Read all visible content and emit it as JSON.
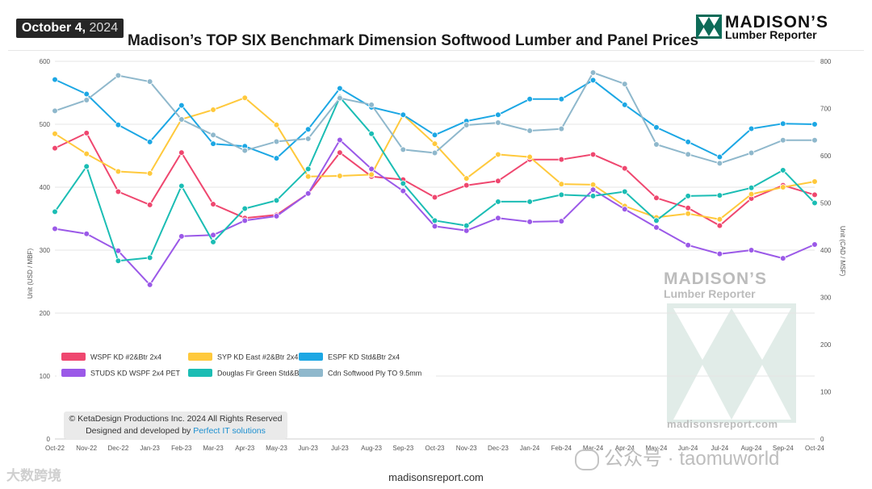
{
  "header": {
    "date_bold": "October 4,",
    "date_year": "2024",
    "title": "Madison’s TOP SIX Benchmark Dimension Softwood Lumber and Panel Prices",
    "logo_main": "MADISON’S",
    "logo_sub": "Lumber Reporter"
  },
  "watermark": {
    "logo_main": "MADISON’S",
    "logo_sub": "Lumber Reporter",
    "url": "madisonsreport.com",
    "left_text": "大数跨境",
    "right_text": "公众号 · taomuworld"
  },
  "copyright": {
    "line1": "© KetaDesign Productions Inc. 2024 All Rights Reserved",
    "line2_prefix": "Designed and developed by",
    "line2_link": "Perfect IT solutions"
  },
  "footer": {
    "url": "madisonsreport.com"
  },
  "colors": {
    "wspf": "#ef476f",
    "syp": "#ffc93c",
    "espf": "#1ca7e4",
    "studs": "#9b59e8",
    "dfir": "#1bbdb4",
    "ply": "#8fb8cc"
  },
  "chart_data": {
    "type": "line",
    "title": "Madison’s TOP SIX Benchmark Dimension Softwood Lumber and Panel Prices",
    "ylabel_left": "Unit (USD / MBF)",
    "ylabel_right": "Unit (CAD / MSF)",
    "ylim_left": [
      0,
      600
    ],
    "ylim_right": [
      0,
      800
    ],
    "yticks_left": [
      0,
      100,
      200,
      300,
      400,
      500,
      600
    ],
    "yticks_right": [
      0,
      100,
      200,
      300,
      400,
      500,
      600,
      700,
      800
    ],
    "grid": true,
    "legend_position": "bottom-left",
    "categories": [
      "Oct-22",
      "Nov-22",
      "Dec-22",
      "Jan-23",
      "Feb-23",
      "Mar-23",
      "Apr-23",
      "May-23",
      "Jun-23",
      "Jul-23",
      "Aug-23",
      "Sep-23",
      "Oct-23",
      "Nov-23",
      "Dec-23",
      "Jan-24",
      "Feb-24",
      "Mar-24",
      "Apr-24",
      "May-24",
      "Jun-24",
      "Jul-24",
      "Aug-24",
      "Sep-24",
      "Oct-24"
    ],
    "series": [
      {
        "key": "wspf",
        "name": "WSPF KD #2&Btr 2x4",
        "axis": "left",
        "values": [
          462,
          486,
          393,
          372,
          455,
          373,
          351,
          356,
          390,
          455,
          417,
          412,
          384,
          403,
          410,
          444,
          444,
          452,
          430,
          383,
          367,
          339,
          382,
          403,
          388
        ]
      },
      {
        "key": "syp",
        "name": "SYP KD East #2&Btr 2x4",
        "axis": "left",
        "values": [
          485,
          453,
          425,
          422,
          508,
          523,
          542,
          499,
          417,
          418,
          420,
          515,
          469,
          414,
          452,
          448,
          405,
          404,
          370,
          352,
          358,
          349,
          389,
          400,
          409
        ]
      },
      {
        "key": "espf",
        "name": "ESPF KD Std&Btr 2x4",
        "axis": "left",
        "values": [
          571,
          548,
          499,
          472,
          530,
          469,
          465,
          446,
          492,
          557,
          527,
          515,
          483,
          505,
          515,
          540,
          540,
          570,
          531,
          495,
          472,
          448,
          493,
          501,
          500
        ]
      },
      {
        "key": "studs",
        "name": "STUDS KD WSPF 2x4 PET",
        "axis": "left",
        "values": [
          334,
          326,
          299,
          245,
          322,
          324,
          347,
          354,
          390,
          475,
          429,
          394,
          338,
          331,
          351,
          345,
          346,
          396,
          365,
          336,
          308,
          294,
          300,
          287,
          309
        ]
      },
      {
        "key": "dfir",
        "name": "Douglas Fir Green Std&Btr 2x4",
        "axis": "left",
        "values": [
          361,
          433,
          283,
          288,
          402,
          313,
          366,
          379,
          429,
          543,
          485,
          406,
          347,
          339,
          377,
          377,
          388,
          386,
          393,
          347,
          386,
          387,
          399,
          427,
          375
        ]
      },
      {
        "key": "ply",
        "name": "Cdn Softwood Ply TO 9.5mm",
        "axis": "right",
        "values": [
          695,
          718,
          770,
          757,
          677,
          644,
          611,
          630,
          636,
          722,
          708,
          613,
          606,
          665,
          670,
          653,
          657,
          776,
          752,
          624,
          603,
          584,
          606,
          633,
          633
        ]
      }
    ]
  }
}
